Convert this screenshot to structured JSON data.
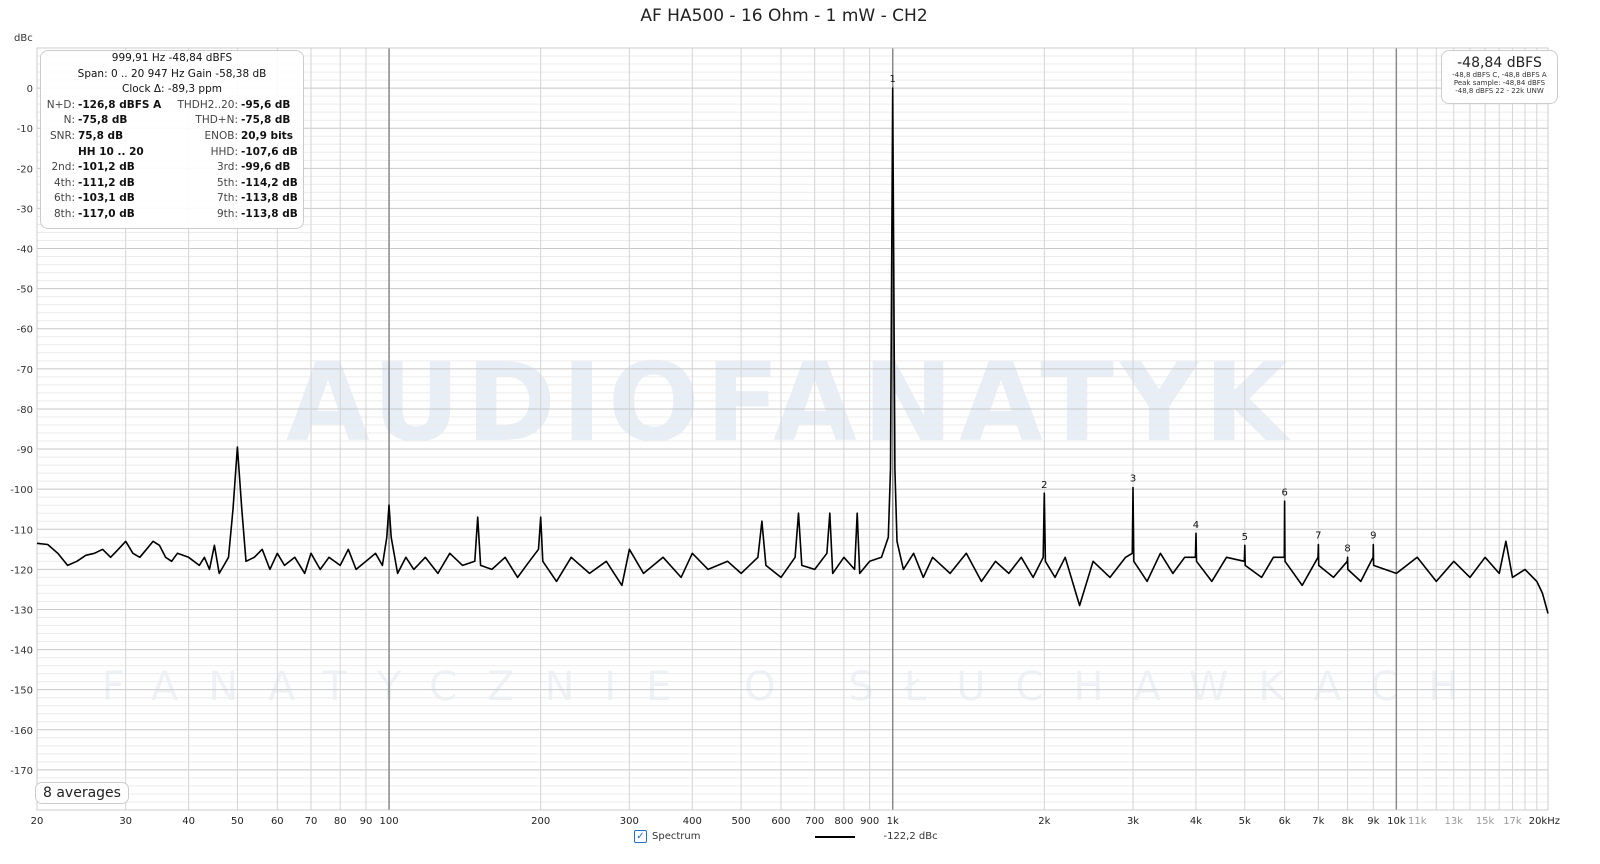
{
  "chart_data": {
    "type": "line",
    "title": "AF HA500 - 16 Ohm - 1 mW - CH2",
    "ylabel": "dBc",
    "xscale": "log",
    "xlim": [
      20,
      20000
    ],
    "ylim": [
      -180,
      10
    ],
    "grid": true,
    "x_ticks": [
      {
        "v": 20,
        "t": "20"
      },
      {
        "v": 30,
        "t": "30"
      },
      {
        "v": 40,
        "t": "40"
      },
      {
        "v": 50,
        "t": "50"
      },
      {
        "v": 60,
        "t": "60"
      },
      {
        "v": 70,
        "t": "70"
      },
      {
        "v": 80,
        "t": "80"
      },
      {
        "v": 90,
        "t": "90"
      },
      {
        "v": 100,
        "t": "100"
      },
      {
        "v": 200,
        "t": "200"
      },
      {
        "v": 300,
        "t": "300"
      },
      {
        "v": 400,
        "t": "400"
      },
      {
        "v": 500,
        "t": "500"
      },
      {
        "v": 600,
        "t": "600"
      },
      {
        "v": 700,
        "t": "700"
      },
      {
        "v": 800,
        "t": "800"
      },
      {
        "v": 900,
        "t": "900"
      },
      {
        "v": 1000,
        "t": "1k"
      },
      {
        "v": 2000,
        "t": "2k"
      },
      {
        "v": 3000,
        "t": "3k"
      },
      {
        "v": 4000,
        "t": "4k"
      },
      {
        "v": 5000,
        "t": "5k"
      },
      {
        "v": 6000,
        "t": "6k"
      },
      {
        "v": 7000,
        "t": "7k"
      },
      {
        "v": 8000,
        "t": "8k"
      },
      {
        "v": 9000,
        "t": "9k"
      },
      {
        "v": 10000,
        "t": "10k"
      },
      {
        "v": 11000,
        "t": "11k",
        "minor": true
      },
      {
        "v": 13000,
        "t": "13k",
        "minor": true
      },
      {
        "v": 15000,
        "t": "15k",
        "minor": true
      },
      {
        "v": 17000,
        "t": "17k",
        "minor": true
      },
      {
        "v": 20000,
        "t": "20kHz"
      }
    ],
    "y_ticks": [
      0,
      -10,
      -20,
      -30,
      -40,
      -50,
      -60,
      -70,
      -80,
      -90,
      -100,
      -110,
      -120,
      -130,
      -140,
      -150,
      -160,
      -170
    ],
    "series": [
      {
        "name": "Spectrum",
        "color": "#000000",
        "points": [
          [
            20,
            -113.5
          ],
          [
            21,
            -113.8
          ],
          [
            22,
            -116
          ],
          [
            23,
            -119
          ],
          [
            24,
            -118
          ],
          [
            25,
            -116.5
          ],
          [
            26,
            -116
          ],
          [
            27,
            -115
          ],
          [
            28,
            -117
          ],
          [
            29,
            -115
          ],
          [
            30,
            -113
          ],
          [
            31,
            -116
          ],
          [
            32,
            -117
          ],
          [
            33,
            -115
          ],
          [
            34,
            -113
          ],
          [
            35,
            -114
          ],
          [
            36,
            -117
          ],
          [
            37,
            -118
          ],
          [
            38,
            -116
          ],
          [
            40,
            -117
          ],
          [
            42,
            -119
          ],
          [
            43,
            -117
          ],
          [
            44,
            -120
          ],
          [
            45,
            -114
          ],
          [
            46,
            -121
          ],
          [
            47,
            -119
          ],
          [
            48,
            -117
          ],
          [
            49,
            -105
          ],
          [
            50,
            -89.5
          ],
          [
            51,
            -105
          ],
          [
            52,
            -118
          ],
          [
            54,
            -117
          ],
          [
            56,
            -115
          ],
          [
            58,
            -120
          ],
          [
            60,
            -116
          ],
          [
            62,
            -119
          ],
          [
            65,
            -117
          ],
          [
            68,
            -121
          ],
          [
            70,
            -116
          ],
          [
            73,
            -120
          ],
          [
            76,
            -117
          ],
          [
            80,
            -119
          ],
          [
            83,
            -115
          ],
          [
            86,
            -120
          ],
          [
            90,
            -118
          ],
          [
            94,
            -116
          ],
          [
            97,
            -119
          ],
          [
            99,
            -112
          ],
          [
            100,
            -104
          ],
          [
            101,
            -112
          ],
          [
            104,
            -121
          ],
          [
            108,
            -117
          ],
          [
            112,
            -120
          ],
          [
            118,
            -117
          ],
          [
            125,
            -121
          ],
          [
            132,
            -116
          ],
          [
            140,
            -119
          ],
          [
            148,
            -118
          ],
          [
            150,
            -107
          ],
          [
            152,
            -119
          ],
          [
            160,
            -120
          ],
          [
            170,
            -117
          ],
          [
            180,
            -122
          ],
          [
            190,
            -118
          ],
          [
            198,
            -115
          ],
          [
            200,
            -107
          ],
          [
            202,
            -118
          ],
          [
            215,
            -123
          ],
          [
            230,
            -117
          ],
          [
            250,
            -121
          ],
          [
            270,
            -118
          ],
          [
            290,
            -124
          ],
          [
            300,
            -115
          ],
          [
            320,
            -121
          ],
          [
            350,
            -117
          ],
          [
            380,
            -122
          ],
          [
            400,
            -116
          ],
          [
            430,
            -120
          ],
          [
            470,
            -118
          ],
          [
            500,
            -121
          ],
          [
            540,
            -117
          ],
          [
            550,
            -108
          ],
          [
            560,
            -119
          ],
          [
            600,
            -122
          ],
          [
            640,
            -117
          ],
          [
            650,
            -106
          ],
          [
            660,
            -119
          ],
          [
            700,
            -120
          ],
          [
            740,
            -116
          ],
          [
            750,
            -106
          ],
          [
            760,
            -121
          ],
          [
            800,
            -117
          ],
          [
            840,
            -120
          ],
          [
            850,
            -106
          ],
          [
            860,
            -121
          ],
          [
            900,
            -118
          ],
          [
            950,
            -117
          ],
          [
            980,
            -112
          ],
          [
            990,
            -95
          ],
          [
            1000,
            0
          ],
          [
            1010,
            -95
          ],
          [
            1020,
            -113
          ],
          [
            1050,
            -120
          ],
          [
            1100,
            -116
          ],
          [
            1150,
            -122
          ],
          [
            1200,
            -117
          ],
          [
            1300,
            -121
          ],
          [
            1400,
            -116
          ],
          [
            1500,
            -123
          ],
          [
            1600,
            -118
          ],
          [
            1700,
            -121
          ],
          [
            1800,
            -117
          ],
          [
            1900,
            -122
          ],
          [
            1990,
            -117
          ],
          [
            2000,
            -101
          ],
          [
            2010,
            -118
          ],
          [
            2100,
            -122
          ],
          [
            2200,
            -117
          ],
          [
            2350,
            -129
          ],
          [
            2500,
            -118
          ],
          [
            2700,
            -122
          ],
          [
            2900,
            -117
          ],
          [
            2990,
            -116
          ],
          [
            3000,
            -99.6
          ],
          [
            3010,
            -118
          ],
          [
            3200,
            -123
          ],
          [
            3400,
            -116
          ],
          [
            3600,
            -121
          ],
          [
            3800,
            -117
          ],
          [
            3990,
            -117
          ],
          [
            4000,
            -111
          ],
          [
            4010,
            -118
          ],
          [
            4300,
            -123
          ],
          [
            4600,
            -117
          ],
          [
            4990,
            -118
          ],
          [
            5000,
            -114
          ],
          [
            5010,
            -119
          ],
          [
            5400,
            -122
          ],
          [
            5700,
            -117
          ],
          [
            5990,
            -117
          ],
          [
            6000,
            -103
          ],
          [
            6010,
            -118
          ],
          [
            6500,
            -124
          ],
          [
            6990,
            -117
          ],
          [
            7000,
            -113.8
          ],
          [
            7010,
            -119
          ],
          [
            7500,
            -122
          ],
          [
            7990,
            -118
          ],
          [
            8000,
            -117
          ],
          [
            8010,
            -120
          ],
          [
            8500,
            -123
          ],
          [
            8990,
            -117
          ],
          [
            9000,
            -113.8
          ],
          [
            9010,
            -119
          ],
          [
            10000,
            -121
          ],
          [
            11000,
            -117
          ],
          [
            12000,
            -123
          ],
          [
            13000,
            -118
          ],
          [
            14000,
            -122
          ],
          [
            15000,
            -117
          ],
          [
            16000,
            -121
          ],
          [
            16500,
            -113
          ],
          [
            17000,
            -122
          ],
          [
            18000,
            -120
          ],
          [
            19000,
            -123
          ],
          [
            19500,
            -126
          ],
          [
            20000,
            -131
          ]
        ]
      }
    ],
    "harmonic_labels": [
      {
        "n": "1",
        "f": 1000,
        "db": 0
      },
      {
        "n": "2",
        "f": 2000,
        "db": -101.2
      },
      {
        "n": "3",
        "f": 3000,
        "db": -99.6
      },
      {
        "n": "4",
        "f": 4000,
        "db": -111.2
      },
      {
        "n": "5",
        "f": 5000,
        "db": -114.2
      },
      {
        "n": "6",
        "f": 6000,
        "db": -103.1
      },
      {
        "n": "7",
        "f": 7000,
        "db": -113.8
      },
      {
        "n": "8",
        "f": 8000,
        "db": -117.0
      },
      {
        "n": "9",
        "f": 9000,
        "db": -113.8
      }
    ]
  },
  "stats": {
    "line1": "999,91 Hz  -48,84 dBFS",
    "line2": "Span: 0 .. 20 947 Hz   Gain -58,38 dB",
    "line3": "Clock Δ: -89,3 ppm",
    "rows": [
      [
        "N+D:",
        "-126,8 dBFS A",
        "THDH2..20:",
        "-95,6 dB"
      ],
      [
        "N:",
        "-75,8 dB",
        "THD+N:",
        "-75,8 dB"
      ],
      [
        "SNR:",
        "75,8 dB",
        "ENOB:",
        "20,9 bits"
      ],
      [
        "",
        "HH 10 .. 20",
        "HHD:",
        "-107,6 dB"
      ],
      [
        "2nd:",
        "-101,2 dB",
        "3rd:",
        "-99,6 dB"
      ],
      [
        "4th:",
        "-111,2 dB",
        "5th:",
        "-114,2 dB"
      ],
      [
        "6th:",
        "-103,1 dB",
        "7th:",
        "-113,8 dB"
      ],
      [
        "8th:",
        "-117,0 dB",
        "9th:",
        "-113,8 dB"
      ]
    ]
  },
  "peak_box": {
    "level": "-48,84 dBFS",
    "l1": "-48,8 dBFS C, -48,8 dBFS A",
    "l2": "Peak sample: -48,84 dBFS",
    "l3": "-48,8 dBFS 22 - 22k UNW"
  },
  "averages": "8 averages",
  "legend": {
    "label": "Spectrum",
    "checked": true,
    "value": "-122,2 dBc"
  },
  "watermark": {
    "logo": "AUDIOFANATYK",
    "tagline": "FANATYCZNIE O SŁUCHAWKACH"
  }
}
